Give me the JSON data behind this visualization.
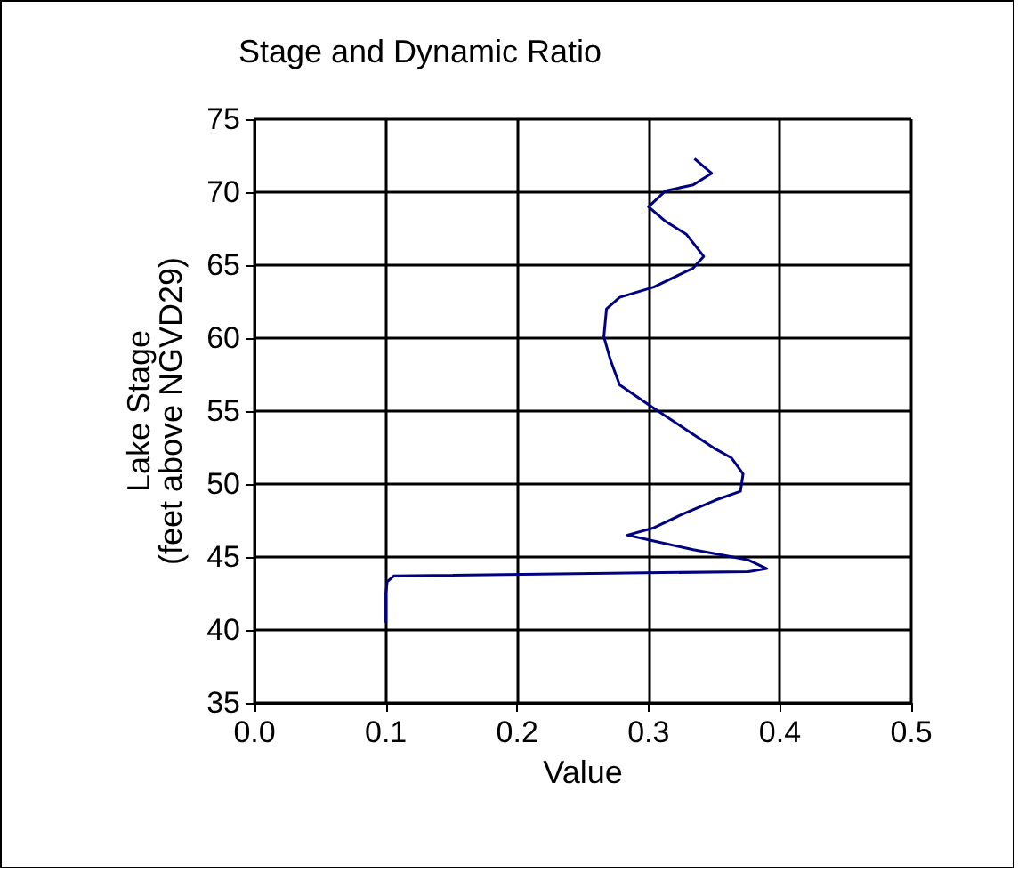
{
  "chart_data": {
    "type": "line",
    "title": "Stage and Dynamic Ratio",
    "xlabel": "Value",
    "ylabel": "Lake Stage\n(feet above NGVD29)",
    "series": [
      {
        "color": "#000080",
        "x": [
          0.335,
          0.348,
          0.334,
          0.313,
          0.3,
          0.313,
          0.329,
          0.342,
          0.334,
          0.304,
          0.278,
          0.268,
          0.266,
          0.271,
          0.278,
          0.304,
          0.329,
          0.351,
          0.363,
          0.372,
          0.37,
          0.351,
          0.325,
          0.304,
          0.284,
          0.304,
          0.334,
          0.376,
          0.39,
          0.376,
          0.106,
          0.101,
          0.1,
          0.1
        ],
        "values": [
          72.3,
          71.3,
          70.5,
          70.1,
          69.0,
          68.0,
          67.1,
          65.6,
          64.8,
          63.5,
          62.8,
          62.0,
          60.1,
          58.5,
          56.8,
          55.2,
          53.7,
          52.4,
          51.8,
          50.7,
          49.5,
          48.9,
          47.9,
          47.0,
          46.5,
          46.1,
          45.5,
          44.8,
          44.2,
          44.0,
          43.7,
          43.3,
          42.5,
          40.5
        ]
      }
    ],
    "xlim": [
      0,
      0.5
    ],
    "xticks": [
      {
        "value": 0,
        "label": "0.0"
      },
      0.1,
      0.2,
      0.3,
      0.4,
      0.5
    ],
    "ylim": [
      35,
      75
    ],
    "yticks": [
      35,
      40,
      45,
      50,
      55,
      60,
      65,
      70,
      75
    ],
    "grid": true,
    "marker": "none",
    "line_style": "solid"
  }
}
